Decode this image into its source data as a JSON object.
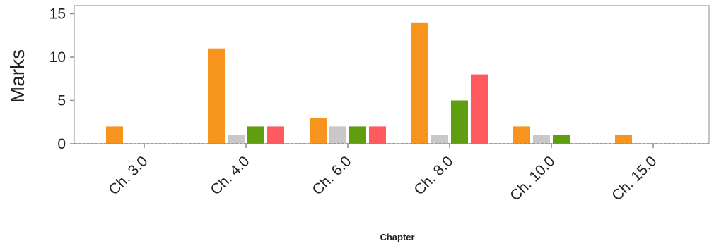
{
  "chart_data": {
    "type": "bar",
    "title": "",
    "xlabel": "Chapter",
    "ylabel": "Marks",
    "ylim": [
      0,
      16
    ],
    "yticks": [
      0,
      5,
      10,
      15
    ],
    "grid": false,
    "categories": [
      "Ch. 3.0",
      "Ch. 4.0",
      "Ch. 6.0",
      "Ch. 8.0",
      "Ch. 10.0",
      "Ch. 15.0"
    ],
    "series": [
      {
        "color": "#f7941d",
        "values": [
          2,
          11,
          3,
          14,
          2,
          1
        ]
      },
      {
        "color": "#c8c8c8",
        "values": [
          0,
          1,
          2,
          1,
          1,
          0
        ]
      },
      {
        "color": "#5f9e0e",
        "values": [
          0,
          2,
          2,
          5,
          1,
          0
        ]
      },
      {
        "color": "#ff5a5f",
        "values": [
          0,
          2,
          2,
          8,
          0,
          0
        ]
      }
    ]
  }
}
